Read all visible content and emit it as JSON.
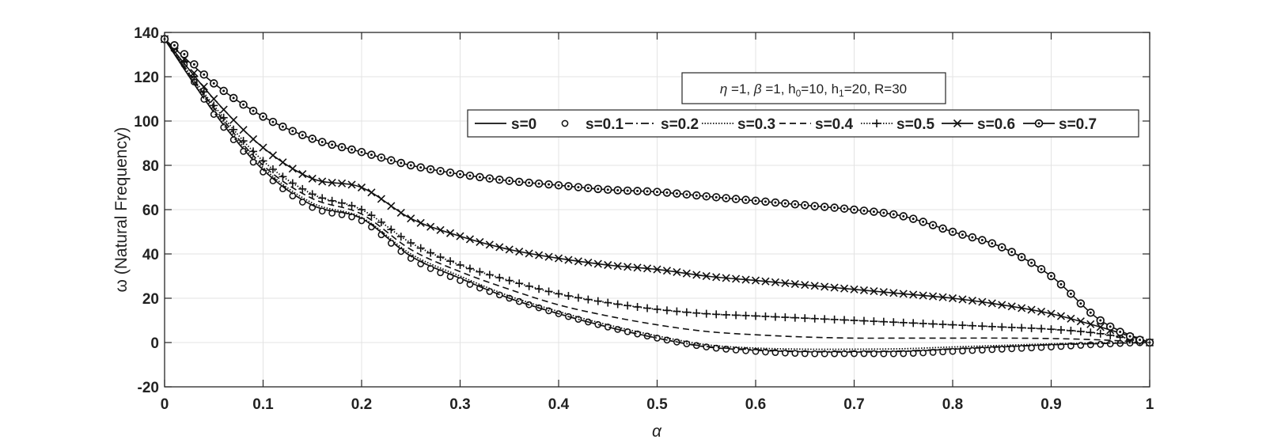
{
  "chart_data": {
    "type": "line",
    "title": "",
    "xlabel": "α",
    "ylabel": "ω (Natural Frequency)",
    "xlim": [
      0,
      1
    ],
    "ylim": [
      -20,
      140
    ],
    "xticks": [
      "0",
      "0.1",
      "0.2",
      "0.3",
      "0.4",
      "0.5",
      "0.6",
      "0.7",
      "0.8",
      "0.9",
      "1"
    ],
    "yticks": [
      "-20",
      "0",
      "20",
      "40",
      "60",
      "80",
      "100",
      "120",
      "140"
    ],
    "grid": true,
    "legend_position": "top-right",
    "annotation": "η =1,  β =1, h0=10, h1=20, R=30",
    "annotation_parts": [
      "η",
      " =1,  ",
      "β",
      " =1, h",
      "0",
      "=10, h",
      "1",
      "=20, R=30"
    ],
    "x": [
      0,
      0.05,
      0.1,
      0.15,
      0.2,
      0.25,
      0.3,
      0.35,
      0.4,
      0.45,
      0.5,
      0.55,
      0.6,
      0.65,
      0.7,
      0.75,
      0.8,
      0.85,
      0.9,
      0.95,
      1
    ],
    "series": [
      {
        "name": "s=0",
        "style": "solid",
        "marker": "none",
        "values": [
          137,
          104,
          78,
          62,
          56,
          39,
          29,
          20,
          13,
          7,
          2,
          -2,
          -3.5,
          -4.2,
          -4.3,
          -4,
          -3,
          -2,
          -1,
          -0.5,
          0
        ]
      },
      {
        "name": "s=0.1",
        "style": "none",
        "marker": "circle",
        "values": [
          137,
          103,
          77,
          61,
          55,
          38,
          28,
          20,
          13,
          7,
          2,
          -2,
          -4,
          -5,
          -5,
          -5,
          -4,
          -3,
          -2,
          -0.8,
          0
        ]
      },
      {
        "name": "s=0.2",
        "style": "dashdot",
        "marker": "none",
        "values": [
          137,
          104,
          78,
          62,
          56,
          39,
          29,
          20,
          13,
          7,
          2,
          -1.8,
          -3.2,
          -4,
          -4,
          -3.8,
          -2.8,
          -1.8,
          -1,
          -0.4,
          0
        ]
      },
      {
        "name": "s=0.3",
        "style": "dotted",
        "marker": "none",
        "values": [
          137,
          105,
          79,
          63,
          56.5,
          40,
          30,
          21,
          14,
          8,
          3,
          -1,
          -2.5,
          -3,
          -3,
          -2.8,
          -2,
          -1.3,
          -0.6,
          -0.2,
          0
        ]
      },
      {
        "name": "s=0.4",
        "style": "dashed",
        "marker": "none",
        "values": [
          137,
          106,
          80,
          65,
          58,
          42,
          32,
          24,
          17,
          12,
          8,
          5,
          3.5,
          2.5,
          2,
          2,
          2,
          2,
          1.8,
          1.2,
          0
        ]
      },
      {
        "name": "s=0.5",
        "style": "dotted",
        "marker": "plus",
        "values": [
          137,
          107,
          82,
          67,
          60,
          45,
          35,
          28,
          22,
          18,
          15,
          13,
          12,
          11,
          10,
          9,
          8,
          7,
          6,
          4,
          0
        ]
      },
      {
        "name": "s=0.6",
        "style": "solid",
        "marker": "x",
        "values": [
          137,
          110,
          88,
          74,
          70,
          56,
          48,
          42,
          38,
          35,
          33,
          30,
          28,
          26,
          24,
          22,
          20,
          17,
          13,
          7,
          0
        ]
      },
      {
        "name": "s=0.7",
        "style": "solid",
        "marker": "square",
        "values": [
          137,
          117,
          102,
          92,
          86,
          80,
          76,
          73,
          71,
          69,
          68,
          66,
          64,
          62,
          60,
          57,
          50,
          43,
          30,
          10,
          0
        ]
      }
    ]
  }
}
